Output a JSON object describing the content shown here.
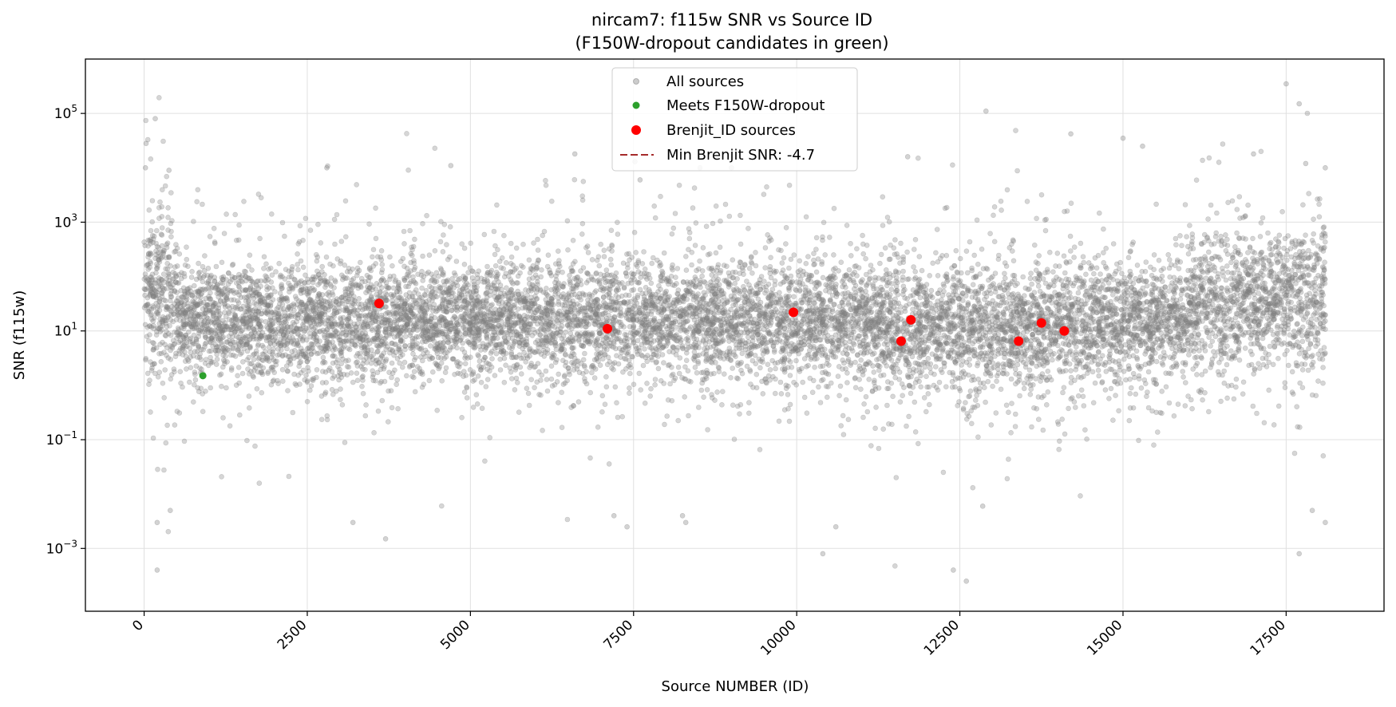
{
  "chart_data": {
    "type": "scatter",
    "title_line1": "nircam7: f115w SNR vs Source ID",
    "title_line2": "(F150W-dropout candidates in green)",
    "xlabel": "Source NUMBER (ID)",
    "ylabel": "SNR (f115w)",
    "x_ticks": [
      0,
      2500,
      5000,
      7500,
      10000,
      12500,
      15000,
      17500
    ],
    "xlim": [
      -900,
      19000
    ],
    "y_scale": "log",
    "ylim": [
      7e-05,
      1000000
    ],
    "y_ticks": [
      {
        "value": 0.001,
        "base": "10",
        "exp": "−3"
      },
      {
        "value": 0.1,
        "base": "10",
        "exp": "−1"
      },
      {
        "value": 10,
        "base": "10",
        "exp": "1"
      },
      {
        "value": 1000,
        "base": "10",
        "exp": "3"
      },
      {
        "value": 100000,
        "base": "10",
        "exp": "5"
      }
    ],
    "grid": true,
    "legend_position": "top-center",
    "colors": {
      "all_sources": "#808080",
      "dropout": "#2ca02c",
      "brenjit": "#ff0000",
      "min_line": "#a52a2a"
    },
    "series": [
      {
        "name": "All sources",
        "note": "dense cloud of ~18000 sources, median SNR ~15",
        "x_range": [
          0,
          18100
        ],
        "outliers": [
          [
            170,
            80000
          ],
          [
            30,
            28000
          ],
          [
            20,
            10000
          ],
          [
            380,
            9000
          ],
          [
            2800,
            10000
          ],
          [
            4700,
            11000
          ],
          [
            6600,
            18000
          ],
          [
            7600,
            6000
          ],
          [
            9000,
            10000
          ],
          [
            11700,
            16000
          ],
          [
            12900,
            110000
          ],
          [
            14200,
            42000
          ],
          [
            15000,
            35000
          ],
          [
            15300,
            25000
          ],
          [
            17500,
            350000
          ],
          [
            17700,
            150000
          ],
          [
            17000,
            18000
          ],
          [
            17800,
            12000
          ],
          [
            18100,
            10000
          ],
          [
            200,
            0.0004
          ],
          [
            12400,
            0.0004
          ],
          [
            12600,
            0.00025
          ],
          [
            10400,
            0.0008
          ],
          [
            17700,
            0.0008
          ],
          [
            3700,
            0.0015
          ],
          [
            7400,
            0.0025
          ],
          [
            8300,
            0.003
          ],
          [
            8250,
            0.004
          ],
          [
            3200,
            0.003
          ],
          [
            18100,
            0.003
          ],
          [
            400,
            0.005
          ],
          [
            17900,
            0.005
          ],
          [
            200,
            0.003
          ],
          [
            7200,
            0.004
          ],
          [
            10600,
            0.0025
          ],
          [
            12850,
            0.006
          ]
        ]
      },
      {
        "name": "Meets F150W-dropout",
        "points": [
          [
            900,
            1.5
          ]
        ]
      },
      {
        "name": "Brenjit_ID sources",
        "points": [
          [
            3600,
            32
          ],
          [
            7100,
            11
          ],
          [
            9950,
            22
          ],
          [
            11600,
            6.5
          ],
          [
            11750,
            16
          ],
          [
            13400,
            6.5
          ],
          [
            13750,
            14
          ],
          [
            14100,
            10
          ]
        ]
      },
      {
        "name": "Min Brenjit SNR: -4.7",
        "value": -4.7
      }
    ]
  }
}
